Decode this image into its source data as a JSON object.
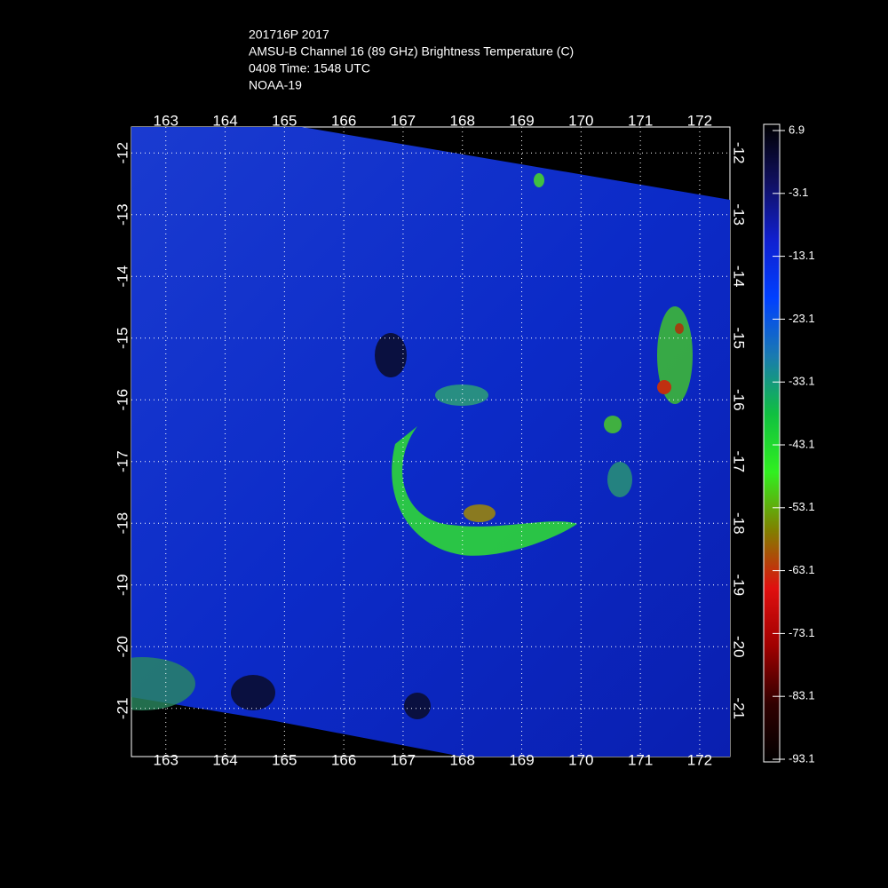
{
  "map": {
    "title_lines": [
      "201716P 2017",
      "AMSU-B Channel 16 (89 GHz) Brightness Temperature (C)",
      "0408 Time: 1548 UTC",
      "NOAA-19"
    ],
    "xlim": [
      162.42,
      172.51
    ],
    "ylim": [
      -21.78,
      -11.58
    ],
    "xticks": [
      163,
      164,
      165,
      166,
      167,
      168,
      169,
      170,
      171,
      172
    ],
    "yticks": [
      -12,
      -13,
      -14,
      -15,
      -16,
      -17,
      -18,
      -19,
      -20,
      -21
    ],
    "colorbar": {
      "clim": [
        -93.1,
        6.9
      ],
      "ticks": [
        6.9,
        -3.1,
        -13.1,
        -23.1,
        -33.1,
        -43.1,
        -53.1,
        -63.1,
        -73.1,
        -83.1,
        -93.1
      ],
      "colormap": [
        "#000000",
        "#101060",
        "#1020d0",
        "#0040ff",
        "#1a7ab0",
        "#10c040",
        "#30f020",
        "#808000",
        "#e01010",
        "#a00000",
        "#300000",
        "#000000"
      ]
    },
    "grid": true
  }
}
